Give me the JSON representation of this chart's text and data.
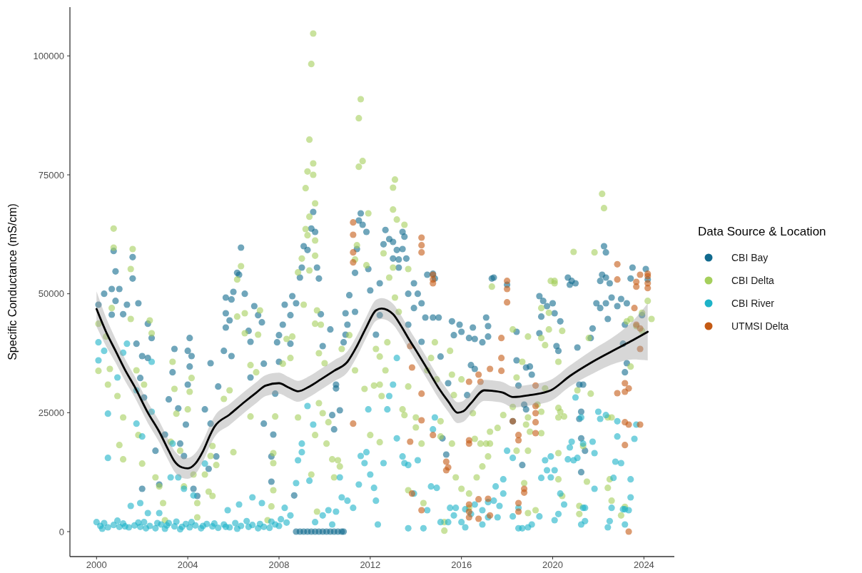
{
  "chart_data": {
    "type": "scatter",
    "ylabel": "Specific Conductance (mS/cm)",
    "legend_title": "Data Source & Location",
    "legend": "right",
    "marker": "circle",
    "xlim": [
      "1998-11",
      "2025-05"
    ],
    "xticks": [
      "2000",
      "2004",
      "2008",
      "2012",
      "2016",
      "2020",
      "2024"
    ],
    "ylim": [
      -5250,
      110250
    ],
    "yticks": [
      0,
      25000,
      50000,
      75000,
      100000
    ],
    "series": [
      {
        "name": "CBI Bay",
        "color": "#116a8e",
        "x": [
          "2000-02",
          "2000-05",
          "2000-09",
          "2001-01",
          "2000-11",
          "2001-05",
          "2001-11",
          "2000-09",
          "2001-03",
          "2001-10",
          "2002-01",
          "2002-04",
          "2002-04",
          "2002-06",
          "2001-12",
          "2002-02",
          "2002-01",
          "2002-08",
          "2002-10",
          "2003-01",
          "2003-03",
          "2003-05",
          "2003-06",
          "2003-08",
          "2003-09",
          "2003-11",
          "2004-02",
          "2004-01",
          "2004-03",
          "2004-02",
          "2004-01",
          "2003-12",
          "2004-04",
          "2004-06",
          "2004-10",
          "2005-01",
          "2005-05",
          "2005-01",
          "2005-04",
          "2004-12",
          "2005-09",
          "2005-12",
          "2006-01",
          "2006-07",
          "2005-09",
          "2005-11",
          "2005-09",
          "2006-09",
          "2006-12",
          "2007-02",
          "2007-04",
          "2006-10",
          "2005-12",
          "2005-08",
          "2007-05",
          "2006-10",
          "2007-05",
          "2007-10",
          "2007-09",
          "2007-09",
          "2007-12",
          "2008-01",
          "2008-04",
          "2008-03",
          "2008-01",
          "2007-11",
          "2000-10",
          "2006-05",
          "2000-11",
          "2001-08",
          "2001-08",
          "2006-03",
          "2006-04",
          "2009-07",
          "2009-06",
          "2009-08",
          "2009-04",
          "2009-02",
          "2009-01",
          "2008-12",
          "2009-09",
          "2009-10",
          "2011-08",
          "2011-07",
          "2011-09",
          "2011-11",
          "2011-06",
          "2011-12",
          "2011-05",
          "2012-09",
          "2012-11",
          "2012-08",
          "2013-01",
          "2013-07",
          "2013-06",
          "2013-06",
          "2013-08",
          "2013-03",
          "2013-01",
          "2013-04",
          "2013-04",
          "2012-06",
          "2014-07",
          "2014-11",
          "2014-10",
          "2013-12",
          "2017-05",
          "2022-04",
          "2022-05",
          "2022-03",
          "2022-02",
          "2022-05",
          "2022-07",
          "2023-07",
          "2023-06",
          "2017-06",
          "2020-09",
          "2020-11",
          "2021-01",
          "2008-08",
          "2008-10",
          "2008-07",
          "2008-07",
          "2009-11",
          "2010-04",
          "2009-12",
          "2010-07",
          "2010-07",
          "2010-05",
          "2010-06",
          "2011-02",
          "2010-12",
          "2011-01",
          "2010-12",
          "2010-11",
          "2011-05",
          "2012-01",
          "2012-04",
          "2012-06",
          "2013-09",
          "2014-02",
          "2014-04",
          "2014-06",
          "2014-04",
          "2013-09",
          "2013-12",
          "2014-10",
          "2015-01",
          "2015-02",
          "2015-03",
          "2015-05",
          "2015-08",
          "2015-09",
          "2015-12",
          "2016-01",
          "2016-05",
          "2016-07",
          "2016-08",
          "2016-12",
          "2017-02",
          "2017-03",
          "2016-06",
          "2016-08",
          "2016-04",
          "2015-06",
          "2008-10",
          "2008-12",
          "2009-02",
          "2009-04",
          "2009-06",
          "2009-08",
          "2009-10",
          "2009-12",
          "2010-02",
          "2010-04",
          "2010-06",
          "2010-08",
          "2010-10",
          "2010-11",
          "2008-09",
          "2010-09",
          "2019-06",
          "2019-08",
          "2019-10",
          "2020-01",
          "2020-02",
          "2019-07",
          "2019-06",
          "2020-03",
          "2020-04",
          "2020-05",
          "2018-11",
          "2019-02",
          "2019-01",
          "2018-06",
          "2018-06",
          "2018-07",
          "2018-10",
          "2018-11",
          "2021-02",
          "2021-03",
          "2021-05",
          "2021-09",
          "2021-10",
          "2021-12",
          "2022-02",
          "2022-05",
          "2022-06",
          "2022-08",
          "2022-11",
          "2023-01",
          "2023-04",
          "2023-03",
          "2023-02",
          "2023-04",
          "2023-03",
          "2021-04",
          "2021-03",
          "2021-04",
          "2021-06",
          "2018-09",
          "2021-04",
          "2018-04",
          "2017-03",
          "2018-01",
          "2020-10",
          "2024-03",
          "2024-02",
          "2023-12"
        ],
        "values": [
          47700,
          50000,
          51000,
          51000,
          48500,
          47700,
          48000,
          45600,
          45700,
          39500,
          36900,
          36500,
          43700,
          40700,
          32300,
          28200,
          9000,
          17000,
          9900,
          20400,
          27800,
          33500,
          38400,
          25900,
          18500,
          15900,
          40700,
          38000,
          36900,
          34700,
          30900,
          22500,
          9000,
          7500,
          25700,
          35400,
          30500,
          22700,
          15800,
          13200,
          49200,
          48800,
          50400,
          50000,
          42900,
          44400,
          45900,
          42200,
          47400,
          45500,
          44000,
          39900,
          36900,
          38000,
          35300,
          32400,
          22700,
          20400,
          15800,
          10500,
          39800,
          41300,
          47700,
          43500,
          35700,
          29000,
          59000,
          59700,
          54700,
          57700,
          53200,
          54400,
          54000,
          67200,
          63700,
          63000,
          59200,
          60000,
          55500,
          53400,
          55500,
          53200,
          66900,
          65400,
          64500,
          63000,
          59400,
          55200,
          54400,
          63400,
          61500,
          60400,
          60900,
          62000,
          63000,
          59400,
          57400,
          59200,
          57400,
          55500,
          57200,
          52200,
          54000,
          53200,
          54200,
          52200,
          53200,
          60000,
          58700,
          54000,
          52700,
          53400,
          52200,
          55500,
          53200,
          53400,
          53400,
          52700,
          52200,
          49500,
          48000,
          45500,
          39500,
          45700,
          42500,
          39000,
          30900,
          30100,
          24500,
          21500,
          49700,
          45900,
          43500,
          41400,
          39800,
          46200,
          50700,
          41400,
          45500,
          50000,
          50000,
          48000,
          45000,
          39900,
          43500,
          47000,
          45000,
          45000,
          36800,
          19600,
          16200,
          44200,
          41300,
          43500,
          42000,
          40700,
          42900,
          40500,
          39800,
          45000,
          43200,
          35000,
          34200,
          28700,
          31200,
          0,
          0,
          0,
          0,
          0,
          0,
          0,
          0,
          0,
          0,
          0,
          0,
          0,
          0,
          7600,
          25500,
          49500,
          48500,
          47400,
          48000,
          45900,
          45200,
          41700,
          39000,
          38000,
          44200,
          34500,
          33000,
          34700,
          36000,
          42000,
          30700,
          26700,
          25700,
          38700,
          30900,
          30900,
          40700,
          42700,
          48000,
          47000,
          48000,
          44700,
          49200,
          47400,
          48900,
          48000,
          43500,
          39500,
          35400,
          33500,
          25200,
          23700,
          19600,
          17000,
          14000,
          12500,
          23200,
          41000,
          51900,
          51900,
          53000,
          55200,
          45500
        ]
      },
      {
        "name": "CBI Delta",
        "color": "#a5cf5c",
        "x": [
          "2000-10",
          "2001-08",
          "2001-07",
          "2000-10",
          "2006-05",
          "2006-03",
          "2009-07",
          "2009-06",
          "2011-08",
          "2011-07",
          "2009-05",
          "2009-07",
          "2009-04",
          "2009-07",
          "2009-03",
          "2009-08",
          "2011-09",
          "2011-07",
          "2013-02",
          "2013-01",
          "2013-01",
          "2013-03",
          "2013-07",
          "2009-05",
          "2009-03",
          "2009-04",
          "2009-08",
          "2009-01",
          "2009-08",
          "2009-05",
          "2008-11",
          "2012-08",
          "2013-01",
          "2013-09",
          "2012-11",
          "2011-06",
          "2011-11",
          "2011-12",
          "2011-05",
          "2022-03",
          "2022-04",
          "2020-12",
          "2019-12",
          "2020-02",
          "2000-02",
          "2000-06",
          "2000-02",
          "2000-08",
          "2000-12",
          "2001-03",
          "2001-01",
          "2001-03",
          "2000-07",
          "2000-09",
          "2001-07",
          "2001-10",
          "2002-02",
          "2001-11",
          "2002-01",
          "2002-05",
          "2002-06",
          "2002-08",
          "2002-10",
          "2002-12",
          "2003-01",
          "2003-05",
          "2003-06",
          "2003-07",
          "2003-04",
          "2003-09",
          "2003-11",
          "2004-03",
          "2004-02",
          "2004-01",
          "2004-04",
          "2004-06",
          "2004-06",
          "2004-12",
          "2005-02",
          "2005-02",
          "2005-01",
          "2005-04",
          "2004-10",
          "2005-08",
          "2005-11",
          "2006-03",
          "2006-07",
          "2006-07",
          "2006-10",
          "2007-01",
          "2007-03",
          "2007-02",
          "2006-10",
          "2006-01",
          "2007-10",
          "2007-10",
          "2007-10",
          "2007-09",
          "2007-07",
          "2007-11",
          "2008-03",
          "2008-05",
          "2008-08",
          "2008-07",
          "2008-11",
          "2009-02",
          "2009-09",
          "2009-08",
          "2009-11",
          "2009-10",
          "2010-01",
          "2009-10",
          "2009-12",
          "2010-03",
          "2010-02",
          "2010-05",
          "2010-08",
          "2010-09",
          "2010-06",
          "2009-09",
          "2009-06",
          "2009-08",
          "2010-10",
          "2011-02",
          "2011-05",
          "2011-10",
          "2012-03",
          "2012-06",
          "2012-04",
          "2012-06",
          "2012-10",
          "2012-09",
          "2012-07",
          "2012-01",
          "2012-06",
          "2013-02",
          "2013-04",
          "2013-09",
          "2013-06",
          "2013-07",
          "2014-01",
          "2014-01",
          "2014-04",
          "2014-05",
          "2013-09",
          "2014-07",
          "2014-09",
          "2014-11",
          "2014-12",
          "2015-02",
          "2015-02",
          "2015-08",
          "2015-10",
          "2016-01",
          "2015-07",
          "2015-08",
          "2015-09",
          "2016-01",
          "2016-07",
          "2016-08",
          "2016-11",
          "2017-02",
          "2017-04",
          "2017-03",
          "2016-12",
          "2016-09",
          "2017-04",
          "2016-05",
          "2016-05",
          "2015-04",
          "2015-04",
          "2017-08",
          "2018-06",
          "2018-11",
          "2018-12",
          "2019-01",
          "2018-12",
          "2018-10",
          "2018-12",
          "2019-04",
          "2019-07",
          "2019-05",
          "2019-09",
          "2019-07",
          "2019-09",
          "2019-11",
          "2020-04",
          "2020-06",
          "2020-05",
          "2020-04",
          "2020-07",
          "2020-04",
          "2019-07",
          "2020-04",
          "2020-04",
          "2020-06",
          "2021-02",
          "2021-09",
          "2021-05",
          "2021-07",
          "2021-03",
          "2021-03",
          "2022-06",
          "2022-08",
          "2023-01",
          "2023-03",
          "2022-08",
          "2022-06",
          "2023-04",
          "2023-06",
          "2023-09",
          "2023-12",
          "2022-07",
          "2023-06",
          "2018-06",
          "2018-09",
          "2017-11",
          "2018-04",
          "2017-05",
          "2018-04",
          "2018-12",
          "2019-07",
          "2019-11",
          "2020-02",
          "2021-08",
          "2021-11",
          "2023-12",
          "2024-03",
          "2024-05"
        ],
        "values": [
          63700,
          59400,
          55200,
          59700,
          55800,
          53000,
          104700,
          98300,
          90900,
          86900,
          82400,
          77400,
          75700,
          75000,
          72200,
          69000,
          77900,
          76700,
          74000,
          72300,
          67700,
          65600,
          64500,
          66200,
          63600,
          62300,
          61200,
          57400,
          58000,
          54900,
          54500,
          58500,
          55500,
          55200,
          53400,
          60200,
          56000,
          66900,
          57200,
          71000,
          68000,
          58800,
          52700,
          52700,
          43700,
          41000,
          33800,
          34200,
          28500,
          24000,
          18200,
          15200,
          30900,
          47000,
          44700,
          33900,
          30900,
          20300,
          14300,
          44400,
          41700,
          11400,
          9500,
          6000,
          2400,
          35700,
          30000,
          24800,
          18900,
          17000,
          9500,
          32300,
          29400,
          25700,
          12000,
          6000,
          3000,
          8400,
          7500,
          18000,
          15900,
          14000,
          12000,
          27900,
          29700,
          45200,
          45900,
          41700,
          35000,
          33500,
          46500,
          41400,
          24200,
          16700,
          16500,
          14400,
          8700,
          5300,
          2400,
          24200,
          35300,
          40500,
          41000,
          36500,
          24000,
          47700,
          46500,
          43700,
          43500,
          37500,
          35400,
          27000,
          24900,
          23000,
          18500,
          15200,
          15000,
          13700,
          11400,
          4200,
          12000,
          20300,
          38400,
          41300,
          33900,
          30000,
          30700,
          30900,
          38400,
          36800,
          39800,
          33900,
          28500,
          20300,
          18800,
          49200,
          46200,
          30500,
          25700,
          24500,
          24000,
          21900,
          18500,
          6000,
          8700,
          33900,
          36500,
          39800,
          32000,
          23200,
          20000,
          18500,
          11400,
          9000,
          38000,
          33000,
          28700,
          32000,
          24900,
          19500,
          18500,
          18500,
          18500,
          15800,
          13700,
          11400,
          21000,
          8000,
          5000,
          2000,
          200,
          21800,
          17000,
          22500,
          24000,
          21000,
          17000,
          10200,
          3900,
          4500,
          25200,
          26700,
          30100,
          40700,
          39200,
          42500,
          35700,
          42200,
          25200,
          24000,
          24200,
          26000,
          20700,
          16500,
          11000,
          7500,
          29700,
          29000,
          18000,
          10500,
          5400,
          3700,
          9200,
          6500,
          3400,
          5200,
          24000,
          24000,
          44200,
          44700,
          43200,
          42200,
          11000,
          34700,
          32400,
          35700,
          24500,
          26200,
          51500,
          42500,
          41000,
          47000,
          46000,
          52200,
          40700,
          58700,
          46000,
          48500,
          44700
        ]
      },
      {
        "name": "CBI River",
        "color": "#1db3c8",
        "x": [
          "2000-02",
          "2000-05",
          "2000-02",
          "2000-07",
          "2000-07",
          "2001-03",
          "2001-05",
          "2000-12",
          "2001-10",
          "2002-06",
          "2002-06",
          "2001-10",
          "2002-01",
          "2003-05",
          "2003-08",
          "2003-04",
          "2003-11",
          "2004-04",
          "2004-10",
          "2005-10",
          "2006-04",
          "2006-11",
          "2007-04",
          "2001-07",
          "2001-12",
          "2002-04",
          "2002-10",
          "2008-04",
          "2000-01",
          "2000-03",
          "2000-05",
          "2000-07",
          "2000-10",
          "2001-01",
          "2001-03",
          "2001-06",
          "2001-09",
          "2001-12",
          "2002-02",
          "2002-05",
          "2002-08",
          "2002-11",
          "2003-01",
          "2003-03",
          "2003-06",
          "2003-09",
          "2003-12",
          "2004-02",
          "2004-05",
          "2004-08",
          "2004-11",
          "2005-02",
          "2005-05",
          "2005-08",
          "2005-11",
          "2006-02",
          "2006-05",
          "2006-08",
          "2006-11",
          "2007-02",
          "2007-05",
          "2007-08",
          "2007-11",
          "2008-02",
          "2008-05",
          "2000-04",
          "2000-12",
          "2001-04",
          "2001-11",
          "2002-03",
          "2002-09",
          "2003-02",
          "2003-07",
          "2003-10",
          "2004-03",
          "2004-09",
          "2005-03",
          "2005-09",
          "2006-03",
          "2006-09",
          "2007-03",
          "2007-09",
          "2008-01",
          "2009-04",
          "2009-01",
          "2009-01",
          "2008-11",
          "2009-07",
          "2009-05",
          "2008-10",
          "2008-07",
          "2009-08",
          "2009-12",
          "2010-03",
          "2010-07",
          "2010-05",
          "2010-10",
          "2011-01",
          "2011-04",
          "2010-09",
          "2011-07",
          "2011-08",
          "2011-11",
          "2011-12",
          "2011-10",
          "2012-01",
          "2012-03",
          "2012-04",
          "2012-05",
          "2012-08",
          "2012-10",
          "2012-11",
          "2013-01",
          "2013-03",
          "2013-03",
          "2013-06",
          "2013-07",
          "2013-09",
          "2013-12",
          "2014-02",
          "2013-09",
          "2014-05",
          "2014-07",
          "2014-11",
          "2014-10",
          "2015-02",
          "2015-06",
          "2015-09",
          "2015-10",
          "2014-09",
          "2014-12",
          "2015-07",
          "2016-03",
          "2016-01",
          "2016-03",
          "2016-06",
          "2016-08",
          "2016-12",
          "2017-03",
          "2016-12",
          "2017-03",
          "2018-01",
          "2018-04",
          "2017-11",
          "2017-07",
          "2017-11",
          "2017-06",
          "2017-09",
          "2017-08",
          "2018-04",
          "2018-07",
          "2018-07",
          "2018-09",
          "2018-12",
          "2019-02",
          "2019-06",
          "2019-09",
          "2019-12",
          "2019-10",
          "2020-02",
          "2019-12",
          "2019-07",
          "2020-02",
          "2020-04",
          "2020-05",
          "2020-07",
          "2020-09",
          "2020-12",
          "2021-02",
          "2020-10",
          "2020-11",
          "2021-01",
          "2021-04",
          "2021-05",
          "2021-05",
          "2021-04",
          "2021-06",
          "2021-10",
          "2021-11",
          "2022-01",
          "2022-05",
          "2022-02",
          "2022-11",
          "2022-10",
          "2023-01",
          "2022-09",
          "2022-08",
          "2022-06",
          "2022-07",
          "2023-02",
          "2023-03",
          "2023-03",
          "2023-06",
          "2023-06",
          "2023-05",
          "2023-09",
          "2023-08",
          "2022-11",
          "2021-11",
          "2021-06"
        ],
        "values": [
          39800,
          38000,
          36000,
          24800,
          15500,
          37600,
          39500,
          32400,
          29700,
          35700,
          25200,
          22700,
          20000,
          18500,
          11400,
          11400,
          9000,
          7600,
          14300,
          4500,
          5700,
          7200,
          6000,
          5400,
          6000,
          3900,
          3900,
          5000,
          2000,
          1200,
          1800,
          900,
          1400,
          1000,
          1700,
          900,
          1300,
          1000,
          2000,
          1200,
          700,
          1500,
          600,
          1800,
          1100,
          500,
          1600,
          900,
          1300,
          700,
          1600,
          1100,
          800,
          1500,
          900,
          1800,
          1200,
          2200,
          1400,
          700,
          1000,
          800,
          1500,
          2600,
          1900,
          600,
          2300,
          1100,
          1900,
          700,
          1800,
          1300,
          2100,
          1000,
          2000,
          1200,
          1700,
          1000,
          600,
          1000,
          1600,
          2100,
          1200,
          26400,
          18500,
          16700,
          15000,
          22500,
          10700,
          10200,
          3400,
          2000,
          3400,
          4500,
          4200,
          1500,
          7200,
          6500,
          5000,
          11400,
          9900,
          15900,
          16700,
          25700,
          14400,
          12000,
          9200,
          6500,
          1500,
          14400,
          25700,
          28500,
          30900,
          36500,
          19600,
          15800,
          14400,
          14000,
          8000,
          15000,
          700,
          700,
          4500,
          24000,
          21500,
          2000,
          2000,
          3400,
          5000,
          9500,
          9200,
          5000,
          4700,
          2000,
          900,
          3700,
          5700,
          4500,
          3000,
          1500,
          6200,
          17000,
          15500,
          11000,
          9500,
          8000,
          6500,
          5400,
          3000,
          3200,
          5000,
          700,
          700,
          900,
          1500,
          3200,
          15000,
          15800,
          12900,
          12900,
          11400,
          11300,
          2400,
          3700,
          8000,
          5700,
          15200,
          15000,
          15500,
          17700,
          18900,
          28200,
          24000,
          18500,
          5000,
          1500,
          2200,
          18900,
          16500,
          25200,
          24500,
          23700,
          20000,
          14700,
          14400,
          11300,
          5000,
          900,
          2200,
          4700,
          4700,
          1500,
          11000,
          7200,
          4500,
          22500,
          19500,
          23200,
          9000,
          5000
        ]
      },
      {
        "name": "UTMSI Delta",
        "color": "#c45a14",
        "x": [
          "2011-04",
          "2011-04",
          "2011-04",
          "2011-04",
          "2014-04",
          "2014-04",
          "2014-04",
          "2014-10",
          "2014-10",
          "2014-10",
          "2013-10",
          "2013-11",
          "2014-04",
          "2014-04",
          "2011-04",
          "2013-10",
          "2014-10",
          "2013-11",
          "2014-04",
          "2015-05",
          "2015-06",
          "2015-05",
          "2016-05",
          "2016-10",
          "2016-11",
          "2016-05",
          "2016-05",
          "2016-05",
          "2016-05",
          "2016-05",
          "2016-10",
          "2016-10",
          "2017-03",
          "2017-04",
          "2017-04",
          "2018-01",
          "2022-11",
          "2022-11",
          "2023-11",
          "2024-03",
          "2024-03",
          "2018-01",
          "2018-01",
          "2017-10",
          "2017-10",
          "2017-10",
          "2018-07",
          "2018-07",
          "2018-04",
          "2019-04",
          "2019-04",
          "2019-04",
          "2019-04",
          "2019-04",
          "2018-10",
          "2018-10",
          "2018-07",
          "2018-07",
          "2023-03",
          "2023-03",
          "2022-11",
          "2023-05",
          "2023-03",
          "2023-05",
          "2023-11",
          "2023-03",
          "2023-05",
          "2023-11",
          "2023-09",
          "2023-09",
          "2024-03",
          "2024-03",
          "2023-09",
          "2023-08",
          "2023-11"
        ],
        "values": [
          65000,
          62400,
          58700,
          56600,
          61800,
          60200,
          58700,
          53000,
          52200,
          54000,
          39000,
          34500,
          29000,
          23400,
          22700,
          18900,
          20300,
          8000,
          4500,
          14700,
          13500,
          12900,
          31500,
          33000,
          31500,
          19200,
          18500,
          5700,
          4200,
          3000,
          6800,
          2700,
          6900,
          3400,
          34200,
          52700,
          56200,
          53000,
          54000,
          54200,
          53700,
          51000,
          48200,
          40700,
          36500,
          33800,
          20300,
          19200,
          23200,
          30700,
          26400,
          24900,
          23000,
          20700,
          9000,
          8200,
          6000,
          4200,
          31200,
          29400,
          29100,
          30100,
          23000,
          22500,
          22500,
          18200,
          0,
          38400,
          52500,
          51500,
          51200,
          52200,
          43500,
          47000,
          42700
        ]
      },
      {
        "type": "line",
        "color": "#000000",
        "marker": "none",
        "x": [
          "2000-01",
          "2000-06",
          "2000-11",
          "2001-04",
          "2001-09",
          "2002-04",
          "2002-10",
          "2003-03",
          "2003-06",
          "2003-10",
          "2004-01",
          "2004-05",
          "2004-09",
          "2005-01",
          "2005-03",
          "2005-11",
          "2006-07",
          "2007-01",
          "2007-06",
          "2008-01",
          "2008-06",
          "2008-11",
          "2009-05",
          "2009-11",
          "2010-06",
          "2011-01",
          "2011-06",
          "2011-11",
          "2012-04",
          "2012-07",
          "2013-01",
          "2013-05",
          "2013-09",
          "2014-02",
          "2014-07",
          "2015-01",
          "2015-06",
          "2015-11",
          "2016-02",
          "2016-06",
          "2017-01",
          "2017-05",
          "2017-11",
          "2018-04",
          "2019-01",
          "2019-12",
          "2020-10",
          "2021-10",
          "2022-11",
          "2023-07",
          "2024-03"
        ],
        "values": [
          46800,
          42000,
          38000,
          34000,
          30500,
          25000,
          21000,
          17000,
          14800,
          13500,
          13300,
          14300,
          16900,
          20500,
          22000,
          24600,
          27300,
          29200,
          30700,
          31200,
          30300,
          29500,
          30500,
          32000,
          33800,
          35700,
          39000,
          43000,
          46500,
          46900,
          45700,
          43400,
          40700,
          37500,
          34200,
          30200,
          27400,
          25000,
          25300,
          27000,
          29700,
          29600,
          29200,
          28300,
          28700,
          29700,
          32700,
          35700,
          38500,
          40200,
          42000
        ],
        "lower": [
          43100,
          39000,
          35500,
          31700,
          28300,
          22800,
          18800,
          14800,
          12600,
          11300,
          11100,
          12100,
          14700,
          18300,
          19800,
          22400,
          25100,
          27000,
          28500,
          29000,
          28100,
          27300,
          28300,
          29800,
          31600,
          33500,
          36800,
          40800,
          44300,
          44700,
          43500,
          41200,
          38500,
          35300,
          32000,
          28000,
          25200,
          22800,
          23100,
          24800,
          27500,
          27400,
          27000,
          26100,
          26500,
          27500,
          30500,
          33200,
          35500,
          36200,
          36000
        ],
        "upper": [
          50500,
          45000,
          40500,
          36300,
          32700,
          27200,
          23200,
          19200,
          17000,
          15700,
          15500,
          16500,
          19100,
          22700,
          24200,
          26800,
          29500,
          31400,
          32900,
          33400,
          32500,
          31700,
          32700,
          34200,
          36000,
          37900,
          41200,
          45200,
          48700,
          49100,
          47900,
          45600,
          42900,
          39700,
          36400,
          32400,
          29600,
          27200,
          27500,
          29200,
          31900,
          31800,
          31400,
          30500,
          30900,
          31900,
          34900,
          38200,
          41500,
          44200,
          48000
        ]
      }
    ]
  }
}
